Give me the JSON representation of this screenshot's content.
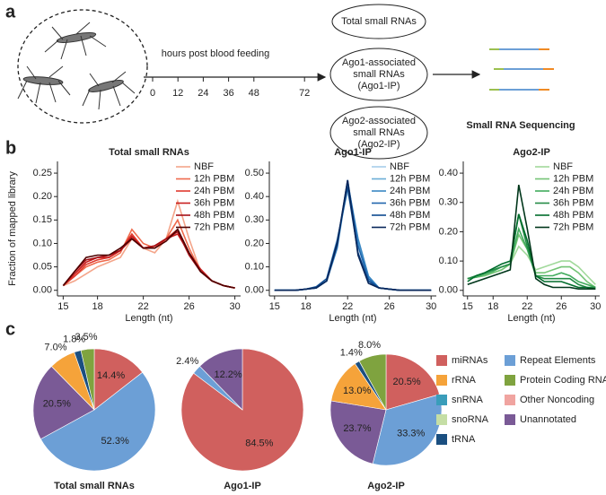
{
  "panel_letters": [
    "a",
    "b",
    "c"
  ],
  "panel_a": {
    "timeline_label": "hours post blood feeding",
    "timeline_ticks": [
      0,
      12,
      24,
      36,
      48,
      72
    ],
    "total_box": "Total small RNAs",
    "ago1_box": [
      "Ago1-associated",
      "small RNAs",
      "(Ago1-IP)"
    ],
    "ago2_box": [
      "Ago2-associated",
      "small RNAs",
      "(Ago2-IP)"
    ],
    "output_label": "Small RNA Sequencing"
  },
  "chart_data": [
    {
      "type": "line",
      "title": "Total small RNAs",
      "x_label": "Length (nt)",
      "y_label": "Fraction of mapped library",
      "x": [
        15,
        16,
        17,
        18,
        19,
        20,
        21,
        22,
        23,
        24,
        25,
        26,
        27,
        28,
        29,
        30
      ],
      "xlim": [
        14.5,
        30.5
      ],
      "xticks": [
        15,
        18,
        22,
        26,
        30
      ],
      "ylim": [
        -0.012,
        0.275
      ],
      "yticks": [
        {
          "value": 0,
          "label": "0.00"
        },
        {
          "value": 0.05,
          "label": "0.05"
        },
        {
          "value": 0.1,
          "label": "0.10"
        },
        {
          "value": 0.15,
          "label": "0.15"
        },
        {
          "value": 0.2,
          "label": "0.20"
        },
        {
          "value": 0.25,
          "label": "0.25"
        }
      ],
      "legend": "upper right",
      "series": [
        {
          "name": "NBF",
          "color": "#f4a58a",
          "values": [
            0.01,
            0.02,
            0.035,
            0.05,
            0.06,
            0.07,
            0.11,
            0.09,
            0.08,
            0.11,
            0.19,
            0.11,
            0.04,
            0.02,
            0.01,
            0.005
          ]
        },
        {
          "name": "12h PBM",
          "color": "#ef6a4c",
          "values": [
            0.01,
            0.03,
            0.05,
            0.06,
            0.065,
            0.08,
            0.13,
            0.1,
            0.09,
            0.11,
            0.15,
            0.09,
            0.04,
            0.02,
            0.01,
            0.005
          ]
        },
        {
          "name": "24h PBM",
          "color": "#e03a2e",
          "values": [
            0.01,
            0.03,
            0.055,
            0.065,
            0.07,
            0.085,
            0.12,
            0.09,
            0.09,
            0.11,
            0.13,
            0.08,
            0.04,
            0.02,
            0.01,
            0.005
          ]
        },
        {
          "name": "36h PBM",
          "color": "#c81d1d",
          "values": [
            0.01,
            0.035,
            0.06,
            0.07,
            0.07,
            0.085,
            0.115,
            0.09,
            0.095,
            0.11,
            0.12,
            0.08,
            0.045,
            0.02,
            0.01,
            0.005
          ]
        },
        {
          "name": "48h PBM",
          "color": "#a50f15",
          "values": [
            0.01,
            0.04,
            0.065,
            0.07,
            0.075,
            0.085,
            0.11,
            0.09,
            0.095,
            0.11,
            0.125,
            0.075,
            0.04,
            0.02,
            0.01,
            0.005
          ]
        },
        {
          "name": "72h PBM",
          "color": "#4d0000",
          "values": [
            0.01,
            0.04,
            0.07,
            0.075,
            0.075,
            0.09,
            0.11,
            0.09,
            0.09,
            0.105,
            0.13,
            0.08,
            0.04,
            0.02,
            0.01,
            0.005
          ]
        }
      ]
    },
    {
      "type": "line",
      "title": "Ago1-IP",
      "x_label": "Length (nt)",
      "x": [
        15,
        16,
        17,
        18,
        19,
        20,
        21,
        22,
        23,
        24,
        25,
        26,
        27,
        28,
        29,
        30
      ],
      "xlim": [
        14.5,
        30.5
      ],
      "xticks": [
        15,
        18,
        22,
        26,
        30
      ],
      "ylim": [
        -0.024,
        0.55
      ],
      "yticks": [
        {
          "value": 0,
          "label": "0.00"
        },
        {
          "value": 0.1,
          "label": "0.10"
        },
        {
          "value": 0.2,
          "label": "0.20"
        },
        {
          "value": 0.3,
          "label": "0.30"
        },
        {
          "value": 0.4,
          "label": "0.40"
        },
        {
          "value": 0.5,
          "label": "0.50"
        }
      ],
      "legend": "upper right",
      "series": [
        {
          "name": "NBF",
          "color": "#a6cde9",
          "values": [
            0,
            0,
            0,
            0.005,
            0.01,
            0.05,
            0.22,
            0.42,
            0.22,
            0.06,
            0.01,
            0.005,
            0,
            0,
            0,
            0
          ]
        },
        {
          "name": "12h PBM",
          "color": "#6aaed6",
          "values": [
            0,
            0,
            0,
            0.005,
            0.01,
            0.04,
            0.2,
            0.45,
            0.2,
            0.06,
            0.01,
            0.005,
            0,
            0,
            0,
            0
          ]
        },
        {
          "name": "24h PBM",
          "color": "#3a87c3",
          "values": [
            0,
            0,
            0,
            0.005,
            0.01,
            0.04,
            0.18,
            0.46,
            0.22,
            0.06,
            0.01,
            0.005,
            0,
            0,
            0,
            0
          ]
        },
        {
          "name": "36h PBM",
          "color": "#1f65ad",
          "values": [
            0,
            0,
            0,
            0.005,
            0.01,
            0.04,
            0.19,
            0.47,
            0.19,
            0.05,
            0.01,
            0.005,
            0,
            0,
            0,
            0
          ]
        },
        {
          "name": "48h PBM",
          "color": "#0d4a8f",
          "values": [
            0,
            0,
            0,
            0.005,
            0.015,
            0.05,
            0.21,
            0.44,
            0.16,
            0.04,
            0.01,
            0.005,
            0,
            0,
            0,
            0
          ]
        },
        {
          "name": "72h PBM",
          "color": "#08265a",
          "values": [
            0,
            0,
            0,
            0.005,
            0.01,
            0.04,
            0.2,
            0.47,
            0.15,
            0.03,
            0.01,
            0.005,
            0,
            0,
            0,
            0
          ]
        }
      ]
    },
    {
      "type": "line",
      "title": "Ago2-IP",
      "x_label": "Length (nt)",
      "x": [
        15,
        16,
        17,
        18,
        19,
        20,
        21,
        22,
        23,
        24,
        25,
        26,
        27,
        28,
        29,
        30
      ],
      "xlim": [
        14.5,
        30.5
      ],
      "xticks": [
        15,
        18,
        22,
        26,
        30
      ],
      "ylim": [
        -0.019,
        0.44
      ],
      "yticks": [
        {
          "value": 0,
          "label": "0.00"
        },
        {
          "value": 0.1,
          "label": "0.10"
        },
        {
          "value": 0.2,
          "label": "0.20"
        },
        {
          "value": 0.3,
          "label": "0.30"
        },
        {
          "value": 0.4,
          "label": "0.40"
        }
      ],
      "legend": "upper right",
      "series": [
        {
          "name": "NBF",
          "color": "#a1d99b",
          "values": [
            0.04,
            0.045,
            0.05,
            0.06,
            0.07,
            0.09,
            0.15,
            0.12,
            0.07,
            0.08,
            0.09,
            0.1,
            0.1,
            0.08,
            0.05,
            0.02
          ]
        },
        {
          "name": "12h PBM",
          "color": "#74c476",
          "values": [
            0.04,
            0.045,
            0.05,
            0.06,
            0.07,
            0.09,
            0.19,
            0.14,
            0.06,
            0.06,
            0.07,
            0.08,
            0.08,
            0.06,
            0.03,
            0.01
          ]
        },
        {
          "name": "24h PBM",
          "color": "#41ab5d",
          "values": [
            0.04,
            0.045,
            0.055,
            0.065,
            0.08,
            0.09,
            0.21,
            0.14,
            0.05,
            0.05,
            0.05,
            0.06,
            0.05,
            0.03,
            0.02,
            0.01
          ]
        },
        {
          "name": "36h PBM",
          "color": "#238b45",
          "values": [
            0.04,
            0.05,
            0.06,
            0.07,
            0.08,
            0.09,
            0.26,
            0.15,
            0.05,
            0.04,
            0.04,
            0.04,
            0.04,
            0.02,
            0.01,
            0.01
          ]
        },
        {
          "name": "48h PBM",
          "color": "#006d2c",
          "values": [
            0.03,
            0.05,
            0.06,
            0.075,
            0.09,
            0.1,
            0.26,
            0.17,
            0.05,
            0.03,
            0.03,
            0.03,
            0.02,
            0.01,
            0.01,
            0.005
          ]
        },
        {
          "name": "72h PBM",
          "color": "#00361a",
          "values": [
            0.02,
            0.03,
            0.04,
            0.05,
            0.06,
            0.07,
            0.36,
            0.21,
            0.04,
            0.02,
            0.01,
            0.01,
            0.01,
            0.005,
            0.005,
            0.005
          ]
        }
      ]
    },
    {
      "type": "pie",
      "title": "Total small RNAs",
      "categories": [
        "miRNAs",
        "Repeat Elements",
        "Unannotated",
        "rRNA",
        "tRNA",
        "Protein Coding RNA"
      ],
      "values": [
        14.4,
        52.3,
        20.5,
        7.0,
        1.8,
        3.5
      ],
      "value_labels": [
        "14.4%",
        "52.3%",
        "20.5%",
        "7.0%",
        "1.8%",
        "3.5%"
      ],
      "colors": [
        "#d0605e",
        "#6c9fd6",
        "#7a5a96",
        "#f5a33a",
        "#1b4f80",
        "#7fa33f"
      ]
    },
    {
      "type": "pie",
      "title": "Ago1-IP",
      "categories": [
        "miRNAs",
        "Repeat Elements",
        "Unannotated"
      ],
      "values": [
        84.5,
        2.4,
        12.2
      ],
      "value_labels": [
        "84.5%",
        "2.4%",
        "12.2%"
      ],
      "colors": [
        "#d0605e",
        "#6c9fd6",
        "#7a5a96"
      ]
    },
    {
      "type": "pie",
      "title": "Ago2-IP",
      "categories": [
        "miRNAs",
        "Repeat Elements",
        "Unannotated",
        "rRNA",
        "tRNA",
        "Protein Coding RNA"
      ],
      "values": [
        20.5,
        33.3,
        23.7,
        13.0,
        1.4,
        8.0
      ],
      "value_labels": [
        "20.5%",
        "33.3%",
        "23.7%",
        "13.0%",
        "1.4%",
        "8.0%"
      ],
      "colors": [
        "#d0605e",
        "#6c9fd6",
        "#7a5a96",
        "#f5a33a",
        "#1b4f80",
        "#7fa33f"
      ]
    }
  ],
  "pie_legend": {
    "labels": [
      "miRNAs",
      "rRNA",
      "snRNA",
      "snoRNA",
      "tRNA",
      "Repeat Elements",
      "Protein Coding RNA",
      "Other Noncoding",
      "Unannotated"
    ],
    "colors": [
      "#d0605e",
      "#f5a33a",
      "#3a9dba",
      "#c5dea5",
      "#1b4f80",
      "#6c9fd6",
      "#7fa33f",
      "#f0a4a0",
      "#7a5a96"
    ]
  }
}
